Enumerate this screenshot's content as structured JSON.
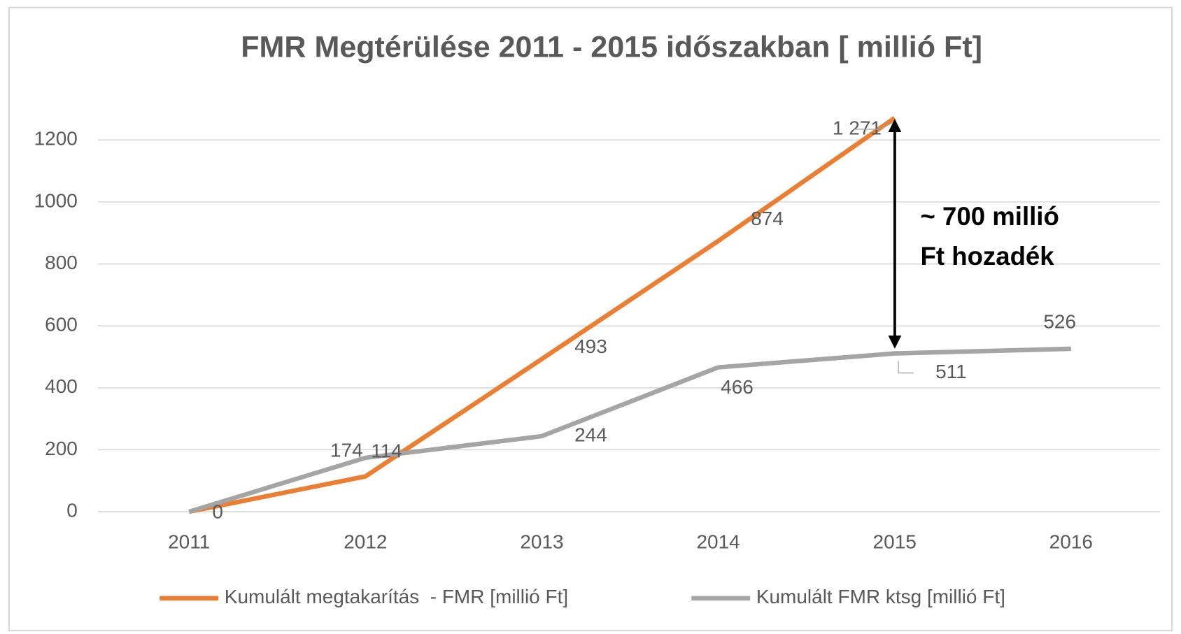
{
  "chart_data": {
    "type": "line",
    "title": "FMR Megtérülése 2011 - 2015 időszakban [ millió Ft]",
    "categories": [
      "2011",
      "2012",
      "2013",
      "2014",
      "2015",
      "2016"
    ],
    "series": [
      {
        "name": "Kumulált megtakarítás  - FMR [millió Ft]",
        "color": "#ed7d31",
        "values": [
          0,
          114,
          493,
          874,
          1271,
          null
        ],
        "value_labels": [
          "0",
          "114",
          "493",
          "874",
          "1 271",
          null
        ]
      },
      {
        "name": "Kumulált FMR ktsg [millió Ft]",
        "color": "#a5a5a5",
        "values": [
          0,
          174,
          244,
          466,
          511,
          526
        ],
        "value_labels": [
          null,
          "174",
          "244",
          "466",
          "511",
          "526"
        ]
      }
    ],
    "annotation": [
      "~ 700 millió",
      "Ft hozadék"
    ],
    "ylim": [
      0,
      1300
    ],
    "yticks": [
      0,
      200,
      400,
      600,
      800,
      1000,
      1200
    ],
    "grid": true,
    "legend": "bottom"
  }
}
